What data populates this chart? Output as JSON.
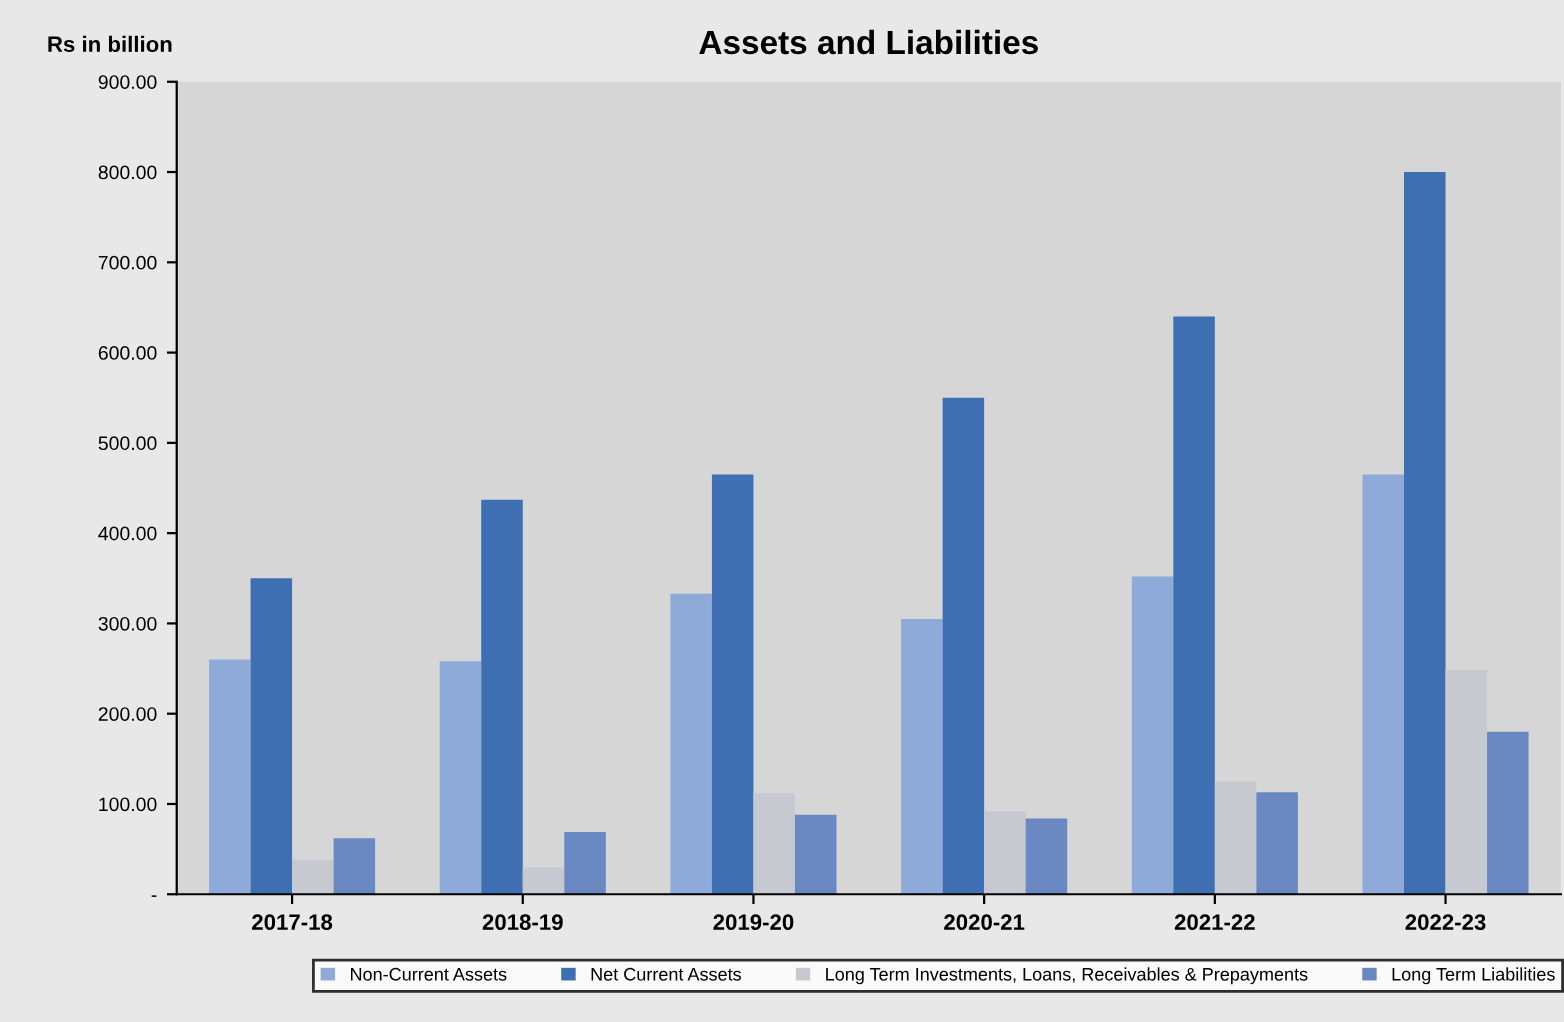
{
  "chart_data": {
    "type": "bar",
    "title": "Assets and Liabilities",
    "ylabel": "Rs in billion",
    "categories": [
      "2017-18",
      "2018-19",
      "2019-20",
      "2020-21",
      "2021-22",
      "2022-23"
    ],
    "series": [
      {
        "name": "Non-Current Assets",
        "color": "#8eaad8",
        "values": [
          260,
          258,
          333,
          305,
          352,
          465
        ]
      },
      {
        "name": "Net Current Assets",
        "color": "#3f6fb3",
        "values": [
          350,
          437,
          465,
          550,
          640,
          800
        ]
      },
      {
        "name": "Long Term Investments, Loans, Receivables & Prepayments",
        "color": "#c6c9cf",
        "values": [
          38,
          30,
          112,
          92,
          125,
          248
        ]
      },
      {
        "name": "Long Term Liabilities",
        "color": "#6a88c2",
        "values": [
          62,
          69,
          88,
          84,
          113,
          180
        ]
      }
    ],
    "ylim": [
      0,
      900
    ],
    "yticks": [
      {
        "value": 0,
        "label": "-"
      },
      {
        "value": 100,
        "label": "100.00"
      },
      {
        "value": 200,
        "label": "200.00"
      },
      {
        "value": 300,
        "label": "300.00"
      },
      {
        "value": 400,
        "label": "400.00"
      },
      {
        "value": 500,
        "label": "500.00"
      },
      {
        "value": 600,
        "label": "600.00"
      },
      {
        "value": 700,
        "label": "700.00"
      },
      {
        "value": 800,
        "label": "800.00"
      },
      {
        "value": 900,
        "label": "900.00"
      }
    ],
    "grid": false,
    "legend": "bottom"
  }
}
